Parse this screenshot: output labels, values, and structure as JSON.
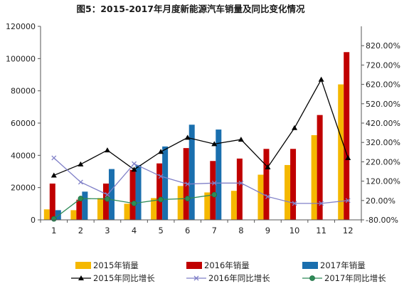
{
  "chart_data": {
    "type": "bar",
    "title": "图5：2015-2017年月度新能源汽车销量及同比变化情况",
    "categories": [
      "1",
      "2",
      "3",
      "4",
      "5",
      "6",
      "7",
      "8",
      "9",
      "10",
      "11",
      "12"
    ],
    "left_axis": {
      "ylim": [
        0,
        120000
      ],
      "ticks": [
        0,
        20000,
        40000,
        60000,
        80000,
        100000,
        120000
      ],
      "tick_labels": [
        "0",
        "20000",
        "40000",
        "60000",
        "80000",
        "100000",
        "120000"
      ]
    },
    "right_axis": {
      "ylim": [
        -80,
        920
      ],
      "ticks": [
        -80,
        20,
        120,
        220,
        320,
        420,
        520,
        620,
        720,
        820
      ],
      "tick_labels": [
        "-80.00%",
        "20.00%",
        "120.00%",
        "220.00%",
        "320.00%",
        "420.00%",
        "520.00%",
        "620.00%",
        "720.00%",
        "820.00%"
      ]
    },
    "bar_series": [
      {
        "name": "2015年销量",
        "color": "#f5b800",
        "values": [
          6500,
          6000,
          13500,
          10000,
          13500,
          21000,
          17000,
          18000,
          28000,
          34000,
          52500,
          84000
        ]
      },
      {
        "name": "2016年销量",
        "color": "#c00000",
        "values": [
          22500,
          12500,
          22500,
          31000,
          35000,
          44500,
          36500,
          38000,
          44000,
          44000,
          65000,
          104000
        ]
      },
      {
        "name": "2017年销量",
        "color": "#1a6fae",
        "values": [
          6000,
          17500,
          31500,
          34000,
          45500,
          59000,
          56000,
          null,
          null,
          null,
          null,
          null
        ]
      }
    ],
    "line_series": [
      {
        "name": "2015年同比增长",
        "color": "#000000",
        "marker": "triangle",
        "values": [
          150,
          207,
          280,
          180,
          272,
          345,
          312,
          335,
          192,
          395,
          645,
          240
        ]
      },
      {
        "name": "2016年同比增长",
        "color": "#8080c8",
        "marker": "x",
        "values": [
          240,
          115,
          50,
          210,
          145,
          105,
          110,
          110,
          40,
          5,
          5,
          20
        ]
      },
      {
        "name": "2017年同比增长",
        "color": "#2e8b57",
        "marker": "circle",
        "values": [
          -75,
          30,
          28,
          5,
          25,
          30,
          50,
          null,
          null,
          null,
          null,
          null
        ]
      }
    ]
  }
}
